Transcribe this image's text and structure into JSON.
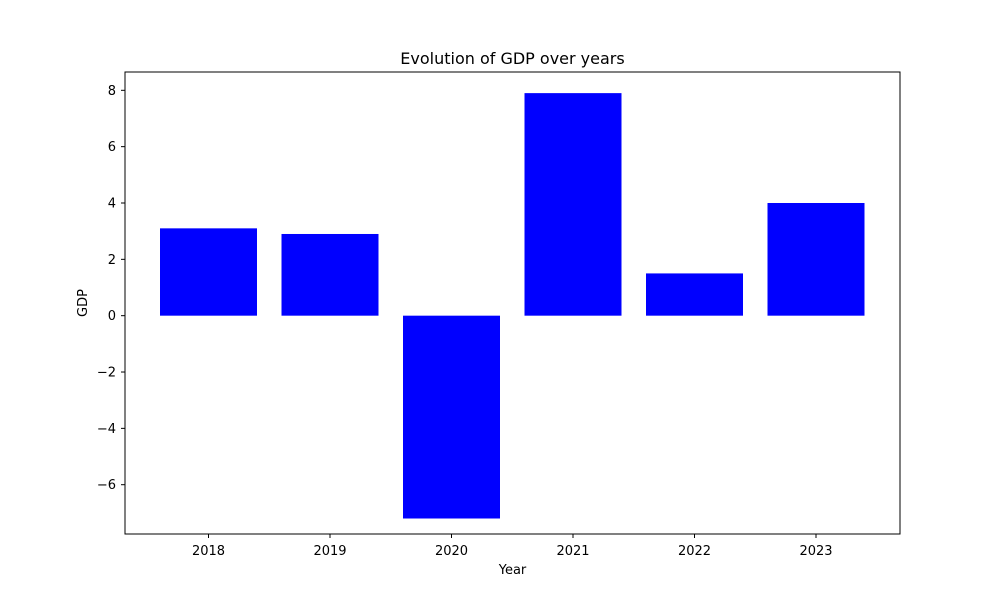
{
  "chart_data": {
    "type": "bar",
    "title": "Evolution of GDP over years",
    "xlabel": "Year",
    "ylabel": "GDP",
    "categories": [
      "2018",
      "2019",
      "2020",
      "2021",
      "2022",
      "2023"
    ],
    "values": [
      3.1,
      2.9,
      -7.2,
      7.9,
      1.5,
      4.0
    ],
    "ylim": [
      -7.75,
      8.65
    ],
    "yticks": [
      -6,
      -4,
      -2,
      0,
      2,
      4,
      6,
      8
    ],
    "ytick_labels": [
      "−6",
      "−4",
      "−2",
      "0",
      "2",
      "4",
      "6",
      "8"
    ],
    "bar_color": "#0000ff",
    "grid": false,
    "legend": "none"
  }
}
